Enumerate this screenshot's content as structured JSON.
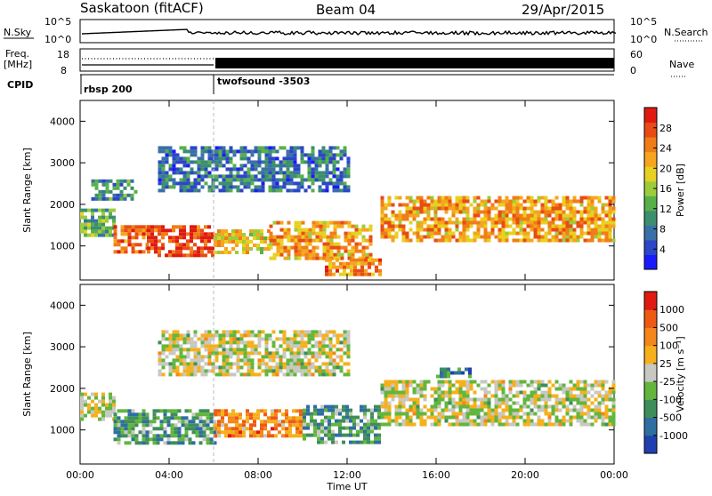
{
  "header": {
    "site": "Saskatoon (fitACF)",
    "beam": "Beam 04",
    "date": "29/Apr/2015"
  },
  "status_panels": {
    "nsky_label": "N.Sky",
    "nsky_ticks": [
      "10^5",
      "10^0"
    ],
    "nsearch_label": "N.Search",
    "freq_label": "Freq.",
    "freq_unit": "[MHz]",
    "freq_ticks": [
      "18",
      "8"
    ],
    "nave_label": "Nave",
    "nave_ticks": [
      "60",
      "0"
    ],
    "cpid_label": "CPID",
    "cpid_segments": [
      {
        "name": "rbsp 200",
        "start_hour": 0,
        "end_hour": 6
      },
      {
        "name": "twofsound -3503",
        "start_hour": 6,
        "end_hour": 24
      }
    ]
  },
  "chart_data": [
    {
      "type": "heatmap",
      "parameter": "Power",
      "ylabel": "Slant Range [km]",
      "ylim": [
        180,
        4500
      ],
      "yticks": [
        "1000",
        "2000",
        "3000",
        "4000"
      ],
      "xlim_hours": [
        0,
        24
      ],
      "colorbar": {
        "label": "Power [dB]",
        "ticks": [
          "4",
          "8",
          "12",
          "16",
          "20",
          "24",
          "28"
        ],
        "colors": [
          "#1a1aff",
          "#2c46c8",
          "#3a70a8",
          "#3b8f6e",
          "#58b04a",
          "#9ccc3c",
          "#e8d020",
          "#f6a51e",
          "#f07d18",
          "#e84c14",
          "#e01a10"
        ]
      },
      "bands": [
        {
          "t0": 0,
          "t1": 1.5,
          "r0": 1300,
          "r1": 1900,
          "level": 0.4
        },
        {
          "t0": 1.5,
          "t1": 3,
          "r0": 900,
          "r1": 1500,
          "level": 0.8
        },
        {
          "t0": 3,
          "t1": 6,
          "r0": 800,
          "r1": 1500,
          "level": 0.9
        },
        {
          "t0": 6,
          "t1": 8.5,
          "r0": 850,
          "r1": 1400,
          "level": 0.6
        },
        {
          "t0": 8.5,
          "t1": 13,
          "r0": 700,
          "r1": 1600,
          "level": 0.7
        },
        {
          "t0": 11,
          "t1": 13.5,
          "r0": 350,
          "r1": 700,
          "level": 0.75
        },
        {
          "t0": 13.5,
          "t1": 24,
          "r0": 1100,
          "r1": 2200,
          "level": 0.7
        },
        {
          "t0": 3.5,
          "t1": 12,
          "r0": 2300,
          "r1": 3400,
          "level": 0.25
        },
        {
          "t0": 0.5,
          "t1": 2.5,
          "r0": 2100,
          "r1": 2600,
          "level": 0.3
        }
      ]
    },
    {
      "type": "heatmap",
      "parameter": "Velocity",
      "ylabel": "Slant Range [km]",
      "ylim": [
        180,
        4500
      ],
      "yticks": [
        "1000",
        "2000",
        "3000",
        "4000"
      ],
      "xlim_hours": [
        0,
        24
      ],
      "xlabel": "Time UT",
      "xticks": [
        "00:00",
        "04:00",
        "08:00",
        "12:00",
        "16:00",
        "20:00",
        "00:00"
      ],
      "colorbar": {
        "label": "Velocity [m s⁻¹]",
        "ticks": [
          "1000",
          "500",
          "100",
          "25",
          "-25",
          "-100",
          "-500",
          "-1000"
        ],
        "colors": [
          "#2040b0",
          "#2e6ea2",
          "#3f8e5a",
          "#62b63e",
          "#c8c8c2",
          "#f6b01c",
          "#f4861a",
          "#ee5a14",
          "#e01a10"
        ]
      },
      "bands": [
        {
          "t0": 0,
          "t1": 1.5,
          "r0": 1300,
          "r1": 1900,
          "level": 0.5
        },
        {
          "t0": 1.5,
          "t1": 6,
          "r0": 700,
          "r1": 1500,
          "level": 0.3
        },
        {
          "t0": 6,
          "t1": 10,
          "r0": 900,
          "r1": 1500,
          "level": 0.72
        },
        {
          "t0": 10,
          "t1": 13.5,
          "r0": 700,
          "r1": 1600,
          "level": 0.3
        },
        {
          "t0": 13.5,
          "t1": 24,
          "r0": 1100,
          "r1": 2200,
          "level": 0.5
        },
        {
          "t0": 3.5,
          "t1": 12,
          "r0": 2300,
          "r1": 3400,
          "level": 0.5
        },
        {
          "t0": 16,
          "t1": 17.5,
          "r0": 2300,
          "r1": 2500,
          "level": 0.2
        }
      ]
    }
  ]
}
